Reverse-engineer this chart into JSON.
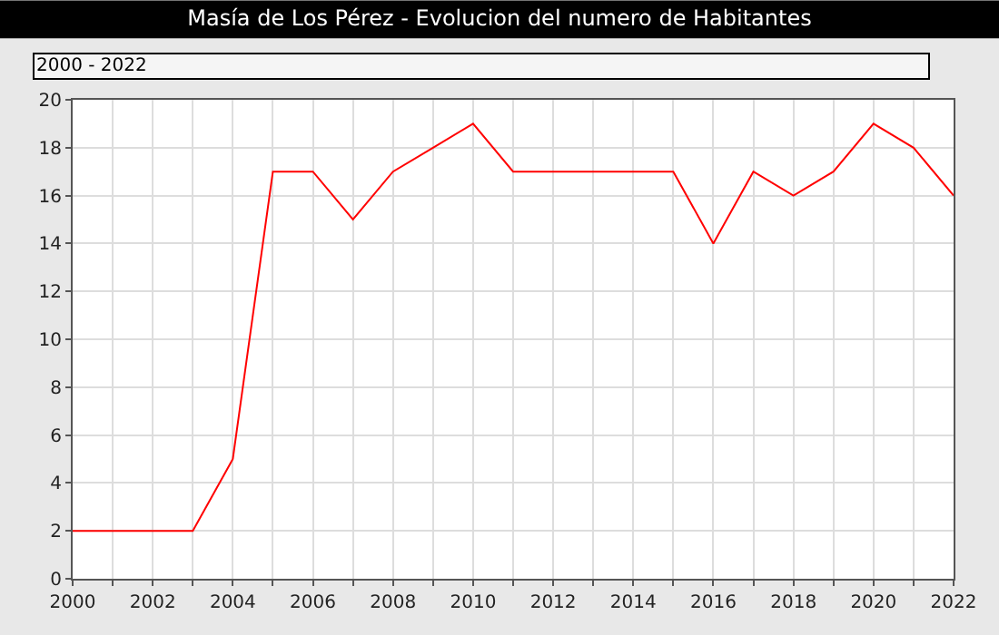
{
  "chart_data": {
    "type": "line",
    "title": "Masía de Los Pérez - Evolucion del numero de Habitantes",
    "annotations": [
      "2000 - 2022"
    ],
    "x": [
      2000,
      2001,
      2002,
      2003,
      2004,
      2005,
      2006,
      2007,
      2008,
      2009,
      2010,
      2011,
      2012,
      2013,
      2014,
      2015,
      2016,
      2017,
      2018,
      2019,
      2020,
      2021,
      2022
    ],
    "series": [
      {
        "color": "#ff0000",
        "values": [
          2,
          2,
          2,
          2,
          5,
          17,
          17,
          15,
          17,
          18,
          19,
          17,
          17,
          17,
          17,
          17,
          14,
          17,
          16,
          17,
          19,
          18,
          16
        ]
      }
    ],
    "xlim": [
      2000,
      2022
    ],
    "xticks": [
      2000,
      {
        "value": 2001,
        "label": null
      },
      2002,
      {
        "value": 2003,
        "label": null
      },
      2004,
      {
        "value": 2005,
        "label": null
      },
      2006,
      {
        "value": 2007,
        "label": null
      },
      2008,
      {
        "value": 2009,
        "label": null
      },
      2010,
      {
        "value": 2011,
        "label": null
      },
      2012,
      {
        "value": 2013,
        "label": null
      },
      2014,
      {
        "value": 2015,
        "label": null
      },
      2016,
      {
        "value": 2017,
        "label": null
      },
      2018,
      {
        "value": 2019,
        "label": null
      },
      2020,
      {
        "value": 2021,
        "label": null
      },
      2022
    ],
    "ylim": [
      0,
      20
    ],
    "yticks": [
      0,
      2,
      4,
      6,
      8,
      10,
      12,
      14,
      16,
      18,
      20
    ],
    "grid": true,
    "marker": "none",
    "line_style": "solid"
  }
}
